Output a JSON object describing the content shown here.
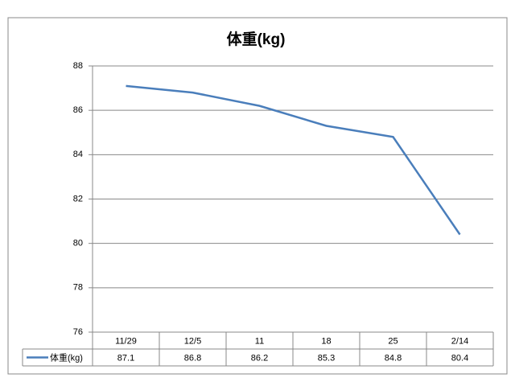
{
  "chart_data": {
    "type": "line",
    "title": "体重(kg)",
    "categories": [
      "11/29",
      "12/5",
      "11",
      "18",
      "25",
      "2/14"
    ],
    "series": [
      {
        "name": "体重(kg)",
        "color": "#4a7ebb",
        "values": [
          87.1,
          86.8,
          86.2,
          85.3,
          84.8,
          80.4
        ]
      }
    ],
    "ylim": [
      76,
      88
    ],
    "yticks": [
      76,
      78,
      80,
      82,
      84,
      86,
      88
    ],
    "grid": true,
    "data_table": true
  }
}
